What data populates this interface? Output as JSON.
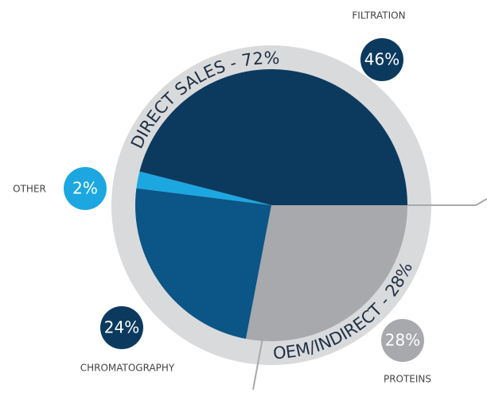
{
  "chart_data": {
    "type": "pie",
    "categories": [
      "PROTEINS",
      "CHROMATOGRAPHY",
      "OTHER",
      "FILTRATION"
    ],
    "values": [
      28,
      24,
      2,
      46
    ],
    "value_labels": [
      "28%",
      "24%",
      "2%",
      "46%"
    ],
    "colors": [
      "#a7a9ac",
      "#0b5587",
      "#1ca7e1",
      "#0c3a5f"
    ],
    "annotations": [
      "DIRECT SALES - 72%",
      "OEM/INDIRECT - 28%"
    ]
  }
}
